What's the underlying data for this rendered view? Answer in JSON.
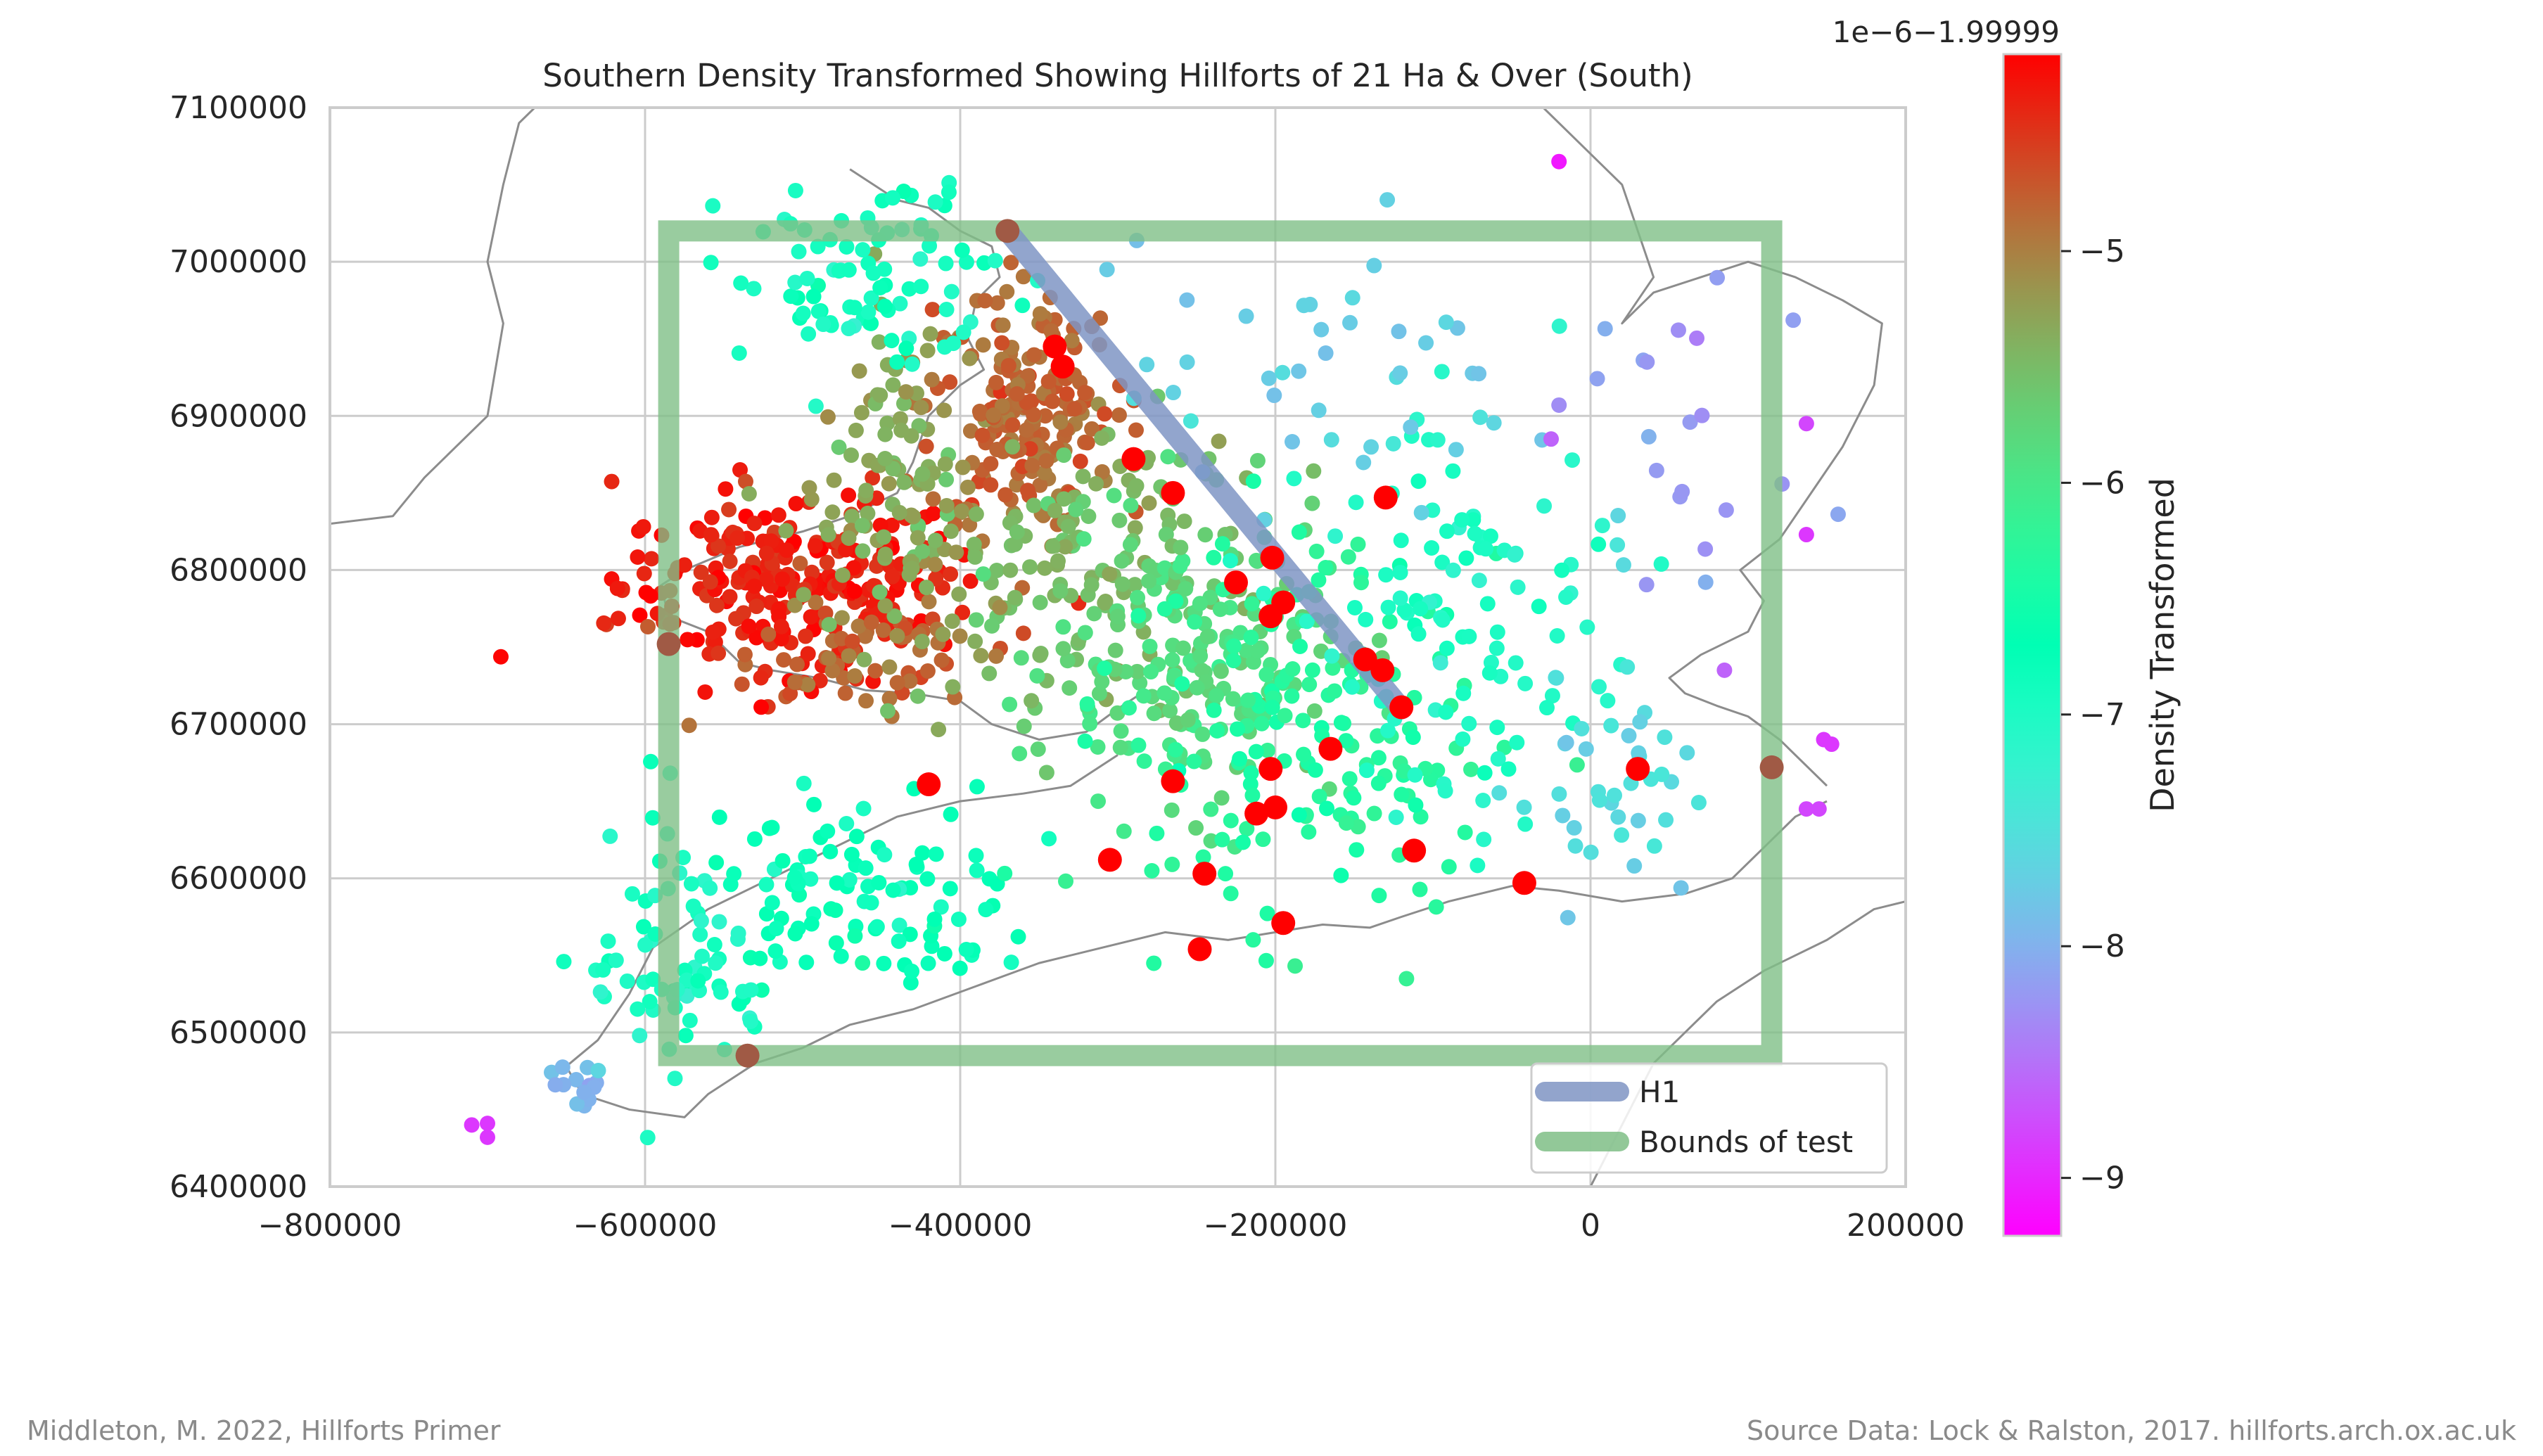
{
  "footer": {
    "left": "Middleton, M. 2022, Hillforts Primer",
    "right": "Source Data: Lock & Ralston, 2017. hillforts.arch.ox.ac.uk"
  },
  "colors": {
    "h1_line": "#7f95c4",
    "bounds": "#7fbf87",
    "hillfort_21ha": "#ff0000",
    "coastline": "#8c8c8c",
    "grid": "#cccccc"
  },
  "chart_data": {
    "type": "scatter",
    "title": "Southern Density Transformed Showing Hillforts of 21 Ha & Over (South)",
    "xlim": [
      -800000,
      200000
    ],
    "ylim": [
      6400000,
      7100000
    ],
    "x_ticks": [
      -800000,
      -600000,
      -400000,
      -200000,
      0,
      200000
    ],
    "x_tick_labels": [
      "−800000",
      "−600000",
      "−400000",
      "−200000",
      "0",
      "200000"
    ],
    "y_ticks": [
      6400000,
      6500000,
      6600000,
      6700000,
      6800000,
      6900000,
      7000000,
      7100000
    ],
    "y_tick_labels": [
      "6400000",
      "6500000",
      "6600000",
      "6700000",
      "6800000",
      "6900000",
      "7000000",
      "7100000"
    ],
    "grid": true,
    "legend": {
      "placement": "bottom-right",
      "entries": [
        {
          "label": "H1",
          "color": "#7f95c4"
        },
        {
          "label": "Bounds of test",
          "color": "#7fbf87"
        }
      ]
    },
    "h1_line": [
      [
        -370000,
        7020000
      ],
      [
        -120000,
        6710000
      ]
    ],
    "bounds_of_test": {
      "x": [
        -585000,
        115000
      ],
      "y": [
        6485000,
        7020000
      ]
    },
    "bounds_markers": [
      [
        -370000,
        7020000
      ],
      [
        -585000,
        6752000
      ],
      [
        -535000,
        6485000
      ],
      [
        115000,
        6672000
      ]
    ],
    "colorbar": {
      "label": "Density Transformed",
      "offset_text": "1e−6−1.99999",
      "range": [
        -9.25,
        -4.15
      ],
      "ticks": [
        -5,
        -6,
        -7,
        -8,
        -9
      ],
      "tick_labels": [
        "−5",
        "−6",
        "−7",
        "−8",
        "−9"
      ],
      "colormap": "rainbow"
    },
    "large_hillforts_21ha": [
      [
        -340000,
        6945000
      ],
      [
        -335000,
        6932000
      ],
      [
        -290000,
        6872000
      ],
      [
        -265000,
        6850000
      ],
      [
        -130000,
        6847000
      ],
      [
        -202000,
        6808000
      ],
      [
        -225000,
        6792000
      ],
      [
        -195000,
        6779000
      ],
      [
        -203000,
        6770000
      ],
      [
        -143000,
        6742000
      ],
      [
        -132000,
        6735000
      ],
      [
        -120000,
        6711000
      ],
      [
        -165000,
        6684000
      ],
      [
        -203000,
        6671000
      ],
      [
        -265000,
        6663000
      ],
      [
        -420000,
        6661000
      ],
      [
        30000,
        6671000
      ],
      [
        -200000,
        6646000
      ],
      [
        -212000,
        6642000
      ],
      [
        -305000,
        6612000
      ],
      [
        -112000,
        6618000
      ],
      [
        -245000,
        6603000
      ],
      [
        -42000,
        6597000
      ],
      [
        -195000,
        6571000
      ],
      [
        -248000,
        6554000
      ]
    ],
    "density_point_clusters": [
      {
        "x": -505000,
        "y": 6790000,
        "sx": 55000,
        "sy": 30000,
        "n": 260,
        "value": -4.35
      },
      {
        "x": -470000,
        "y": 6745000,
        "sx": 45000,
        "sy": 18000,
        "n": 60,
        "value": -4.8
      },
      {
        "x": -360000,
        "y": 6905000,
        "sx": 30000,
        "sy": 40000,
        "n": 200,
        "value": -4.85
      },
      {
        "x": -320000,
        "y": 6810000,
        "sx": 55000,
        "sy": 45000,
        "n": 150,
        "value": -5.5
      },
      {
        "x": -440000,
        "y": 6840000,
        "sx": 25000,
        "sy": 60000,
        "n": 110,
        "value": -5.3
      },
      {
        "x": -250000,
        "y": 6740000,
        "sx": 45000,
        "sy": 45000,
        "n": 180,
        "value": -5.85
      },
      {
        "x": -180000,
        "y": 6690000,
        "sx": 60000,
        "sy": 60000,
        "n": 160,
        "value": -6.35
      },
      {
        "x": -470000,
        "y": 6590000,
        "sx": 60000,
        "sy": 40000,
        "n": 120,
        "value": -6.75
      },
      {
        "x": -580000,
        "y": 6540000,
        "sx": 30000,
        "sy": 40000,
        "n": 60,
        "value": -7.0
      },
      {
        "x": -460000,
        "y": 6990000,
        "sx": 40000,
        "sy": 30000,
        "n": 90,
        "value": -6.9
      },
      {
        "x": -80000,
        "y": 6760000,
        "sx": 50000,
        "sy": 60000,
        "n": 110,
        "value": -7.05
      },
      {
        "x": 10000,
        "y": 6660000,
        "sx": 30000,
        "sy": 40000,
        "n": 40,
        "value": -7.6
      },
      {
        "x": -150000,
        "y": 6920000,
        "sx": 70000,
        "sy": 50000,
        "n": 45,
        "value": -7.7
      },
      {
        "x": 70000,
        "y": 6870000,
        "sx": 40000,
        "sy": 60000,
        "n": 20,
        "value": -8.2
      },
      {
        "x": -640000,
        "y": 6470000,
        "sx": 10000,
        "sy": 8000,
        "n": 14,
        "value": -7.9
      }
    ],
    "isolated_points": [
      {
        "x": -710000,
        "y": 6440000,
        "value": -8.9
      },
      {
        "x": -700000,
        "y": 6432000,
        "value": -8.9
      },
      {
        "x": -700000,
        "y": 6441000,
        "value": -8.9
      },
      {
        "x": -20000,
        "y": 7065000,
        "value": -9.1
      },
      {
        "x": 137000,
        "y": 6895000,
        "value": -8.8
      },
      {
        "x": 137000,
        "y": 6823000,
        "value": -8.9
      },
      {
        "x": 148000,
        "y": 6690000,
        "value": -8.9
      },
      {
        "x": 153000,
        "y": 6687000,
        "value": -8.9
      },
      {
        "x": 137000,
        "y": 6645000,
        "value": -8.8
      },
      {
        "x": 145000,
        "y": 6645000,
        "value": -8.8
      },
      {
        "x": 85000,
        "y": 6735000,
        "value": -8.6
      },
      {
        "x": -25000,
        "y": 6885000,
        "value": -8.6
      },
      {
        "x": -20000,
        "y": 6907000,
        "value": -8.3
      }
    ]
  }
}
